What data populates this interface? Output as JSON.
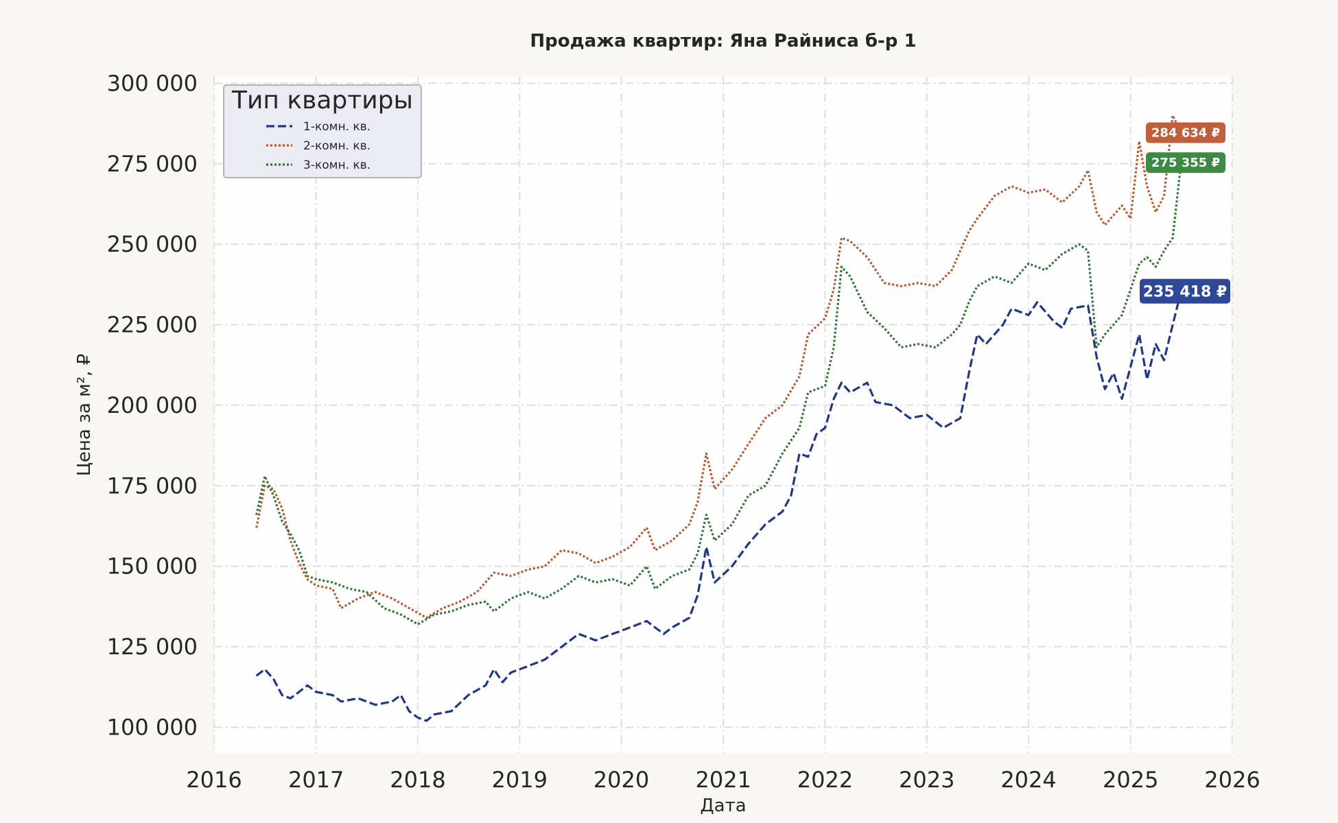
{
  "chart_data": {
    "type": "line",
    "title": "Продажа квартир: Яна Райниса б-р 1",
    "xlabel": "Дата",
    "ylabel": "Цена за м², ₽",
    "x_ticks": [
      "2016",
      "2017",
      "2018",
      "2019",
      "2020",
      "2021",
      "2022",
      "2023",
      "2024",
      "2025",
      "2026"
    ],
    "y_ticks": [
      "100 000",
      "125 000",
      "150 000",
      "175 000",
      "200 000",
      "225 000",
      "250 000",
      "275 000",
      "300 000"
    ],
    "xlim": [
      "2016-01-01",
      "2026-01-01"
    ],
    "ylim": [
      92000,
      302000
    ],
    "grid": true,
    "legend": {
      "title": "Тип квартиры",
      "placement": "top-left"
    },
    "series": [
      {
        "name": "1-комн. кв.",
        "color": "#1f3788",
        "label_color": "#2f4797",
        "style": "dashed",
        "end_label": "235 418 ₽",
        "points": [
          [
            "2016-06-01",
            116000
          ],
          [
            "2016-07-01",
            118000
          ],
          [
            "2016-08-01",
            115000
          ],
          [
            "2016-09-01",
            110000
          ],
          [
            "2016-10-01",
            109000
          ],
          [
            "2016-11-01",
            111000
          ],
          [
            "2016-12-01",
            113000
          ],
          [
            "2017-01-01",
            111000
          ],
          [
            "2017-03-01",
            110000
          ],
          [
            "2017-04-01",
            108000
          ],
          [
            "2017-06-01",
            109000
          ],
          [
            "2017-08-01",
            107000
          ],
          [
            "2017-10-01",
            108000
          ],
          [
            "2017-11-01",
            110000
          ],
          [
            "2017-12-01",
            105000
          ],
          [
            "2018-01-01",
            103000
          ],
          [
            "2018-02-01",
            102000
          ],
          [
            "2018-03-01",
            104000
          ],
          [
            "2018-05-01",
            105000
          ],
          [
            "2018-07-01",
            110000
          ],
          [
            "2018-09-01",
            113000
          ],
          [
            "2018-10-01",
            118000
          ],
          [
            "2018-11-01",
            114000
          ],
          [
            "2018-12-01",
            117000
          ],
          [
            "2019-02-01",
            119000
          ],
          [
            "2019-04-01",
            121000
          ],
          [
            "2019-06-01",
            125000
          ],
          [
            "2019-08-01",
            129000
          ],
          [
            "2019-10-01",
            127000
          ],
          [
            "2019-12-01",
            129000
          ],
          [
            "2020-02-01",
            131000
          ],
          [
            "2020-04-01",
            133000
          ],
          [
            "2020-05-01",
            131000
          ],
          [
            "2020-06-01",
            129000
          ],
          [
            "2020-07-01",
            131000
          ],
          [
            "2020-09-01",
            134000
          ],
          [
            "2020-10-01",
            141000
          ],
          [
            "2020-11-01",
            156000
          ],
          [
            "2020-12-01",
            145000
          ],
          [
            "2021-02-01",
            150000
          ],
          [
            "2021-04-01",
            157000
          ],
          [
            "2021-06-01",
            163000
          ],
          [
            "2021-08-01",
            167000
          ],
          [
            "2021-09-01",
            172000
          ],
          [
            "2021-10-01",
            185000
          ],
          [
            "2021-11-01",
            184000
          ],
          [
            "2021-12-01",
            191000
          ],
          [
            "2022-01-01",
            193000
          ],
          [
            "2022-02-01",
            202000
          ],
          [
            "2022-03-01",
            207000
          ],
          [
            "2022-04-01",
            204000
          ],
          [
            "2022-06-01",
            207000
          ],
          [
            "2022-07-01",
            201000
          ],
          [
            "2022-09-01",
            200000
          ],
          [
            "2022-11-01",
            196000
          ],
          [
            "2023-01-01",
            197000
          ],
          [
            "2023-03-01",
            193000
          ],
          [
            "2023-05-01",
            196000
          ],
          [
            "2023-06-01",
            210000
          ],
          [
            "2023-07-01",
            222000
          ],
          [
            "2023-08-01",
            219000
          ],
          [
            "2023-10-01",
            225000
          ],
          [
            "2023-11-01",
            230000
          ],
          [
            "2024-01-01",
            228000
          ],
          [
            "2024-02-01",
            232000
          ],
          [
            "2024-04-01",
            226000
          ],
          [
            "2024-05-01",
            224000
          ],
          [
            "2024-06-01",
            230000
          ],
          [
            "2024-08-01",
            231000
          ],
          [
            "2024-09-01",
            215000
          ],
          [
            "2024-10-01",
            205000
          ],
          [
            "2024-11-01",
            210000
          ],
          [
            "2024-12-01",
            202000
          ],
          [
            "2025-01-01",
            212000
          ],
          [
            "2025-02-01",
            222000
          ],
          [
            "2025-03-01",
            208000
          ],
          [
            "2025-04-01",
            219000
          ],
          [
            "2025-05-01",
            214000
          ],
          [
            "2025-06-01",
            225000
          ],
          [
            "2025-07-01",
            235418
          ]
        ]
      },
      {
        "name": "2-комн. кв.",
        "color": "#b5562b",
        "label_color": "#c0603a",
        "style": "dotted",
        "end_label": "284 634 ₽",
        "points": [
          [
            "2016-06-01",
            162000
          ],
          [
            "2016-07-01",
            175000
          ],
          [
            "2016-08-01",
            174000
          ],
          [
            "2016-09-01",
            168000
          ],
          [
            "2016-10-01",
            158000
          ],
          [
            "2016-11-01",
            151000
          ],
          [
            "2016-12-01",
            146000
          ],
          [
            "2017-01-01",
            144000
          ],
          [
            "2017-03-01",
            143000
          ],
          [
            "2017-04-01",
            137000
          ],
          [
            "2017-06-01",
            140000
          ],
          [
            "2017-08-01",
            142000
          ],
          [
            "2017-10-01",
            140000
          ],
          [
            "2017-12-01",
            137000
          ],
          [
            "2018-02-01",
            134000
          ],
          [
            "2018-04-01",
            137000
          ],
          [
            "2018-06-01",
            139000
          ],
          [
            "2018-08-01",
            142000
          ],
          [
            "2018-10-01",
            148000
          ],
          [
            "2018-12-01",
            147000
          ],
          [
            "2019-02-01",
            149000
          ],
          [
            "2019-04-01",
            150000
          ],
          [
            "2019-06-01",
            155000
          ],
          [
            "2019-08-01",
            154000
          ],
          [
            "2019-10-01",
            151000
          ],
          [
            "2019-12-01",
            153000
          ],
          [
            "2020-02-01",
            156000
          ],
          [
            "2020-04-01",
            162000
          ],
          [
            "2020-05-01",
            155000
          ],
          [
            "2020-07-01",
            158000
          ],
          [
            "2020-09-01",
            163000
          ],
          [
            "2020-10-01",
            170000
          ],
          [
            "2020-11-01",
            185000
          ],
          [
            "2020-12-01",
            174000
          ],
          [
            "2021-02-01",
            180000
          ],
          [
            "2021-04-01",
            188000
          ],
          [
            "2021-06-01",
            196000
          ],
          [
            "2021-08-01",
            200000
          ],
          [
            "2021-10-01",
            209000
          ],
          [
            "2021-11-01",
            222000
          ],
          [
            "2022-01-01",
            227000
          ],
          [
            "2022-02-01",
            236000
          ],
          [
            "2022-03-01",
            252000
          ],
          [
            "2022-04-01",
            251000
          ],
          [
            "2022-06-01",
            246000
          ],
          [
            "2022-08-01",
            238000
          ],
          [
            "2022-10-01",
            237000
          ],
          [
            "2022-12-01",
            238000
          ],
          [
            "2023-02-01",
            237000
          ],
          [
            "2023-04-01",
            242000
          ],
          [
            "2023-05-01",
            248000
          ],
          [
            "2023-06-01",
            254000
          ],
          [
            "2023-07-01",
            258000
          ],
          [
            "2023-09-01",
            265000
          ],
          [
            "2023-11-01",
            268000
          ],
          [
            "2024-01-01",
            266000
          ],
          [
            "2024-03-01",
            267000
          ],
          [
            "2024-05-01",
            263000
          ],
          [
            "2024-07-01",
            268000
          ],
          [
            "2024-08-01",
            273000
          ],
          [
            "2024-09-01",
            260000
          ],
          [
            "2024-10-01",
            256000
          ],
          [
            "2024-12-01",
            262000
          ],
          [
            "2025-01-01",
            258000
          ],
          [
            "2025-02-01",
            282000
          ],
          [
            "2025-03-01",
            268000
          ],
          [
            "2025-04-01",
            260000
          ],
          [
            "2025-05-01",
            265000
          ],
          [
            "2025-06-01",
            290000
          ],
          [
            "2025-07-01",
            284634
          ]
        ]
      },
      {
        "name": "3-комн. кв.",
        "color": "#2e7432",
        "label_color": "#3d8a43",
        "style": "dotted",
        "end_label": "275 355 ₽",
        "points": [
          [
            "2016-06-01",
            166000
          ],
          [
            "2016-07-01",
            178000
          ],
          [
            "2016-08-01",
            172000
          ],
          [
            "2016-09-01",
            164000
          ],
          [
            "2016-10-01",
            160000
          ],
          [
            "2016-11-01",
            155000
          ],
          [
            "2016-12-01",
            147000
          ],
          [
            "2017-01-01",
            146000
          ],
          [
            "2017-03-01",
            145000
          ],
          [
            "2017-05-01",
            143000
          ],
          [
            "2017-07-01",
            142000
          ],
          [
            "2017-09-01",
            137000
          ],
          [
            "2017-11-01",
            135000
          ],
          [
            "2018-01-01",
            132000
          ],
          [
            "2018-03-01",
            135000
          ],
          [
            "2018-05-01",
            136000
          ],
          [
            "2018-07-01",
            138000
          ],
          [
            "2018-09-01",
            139000
          ],
          [
            "2018-10-01",
            136000
          ],
          [
            "2018-12-01",
            140000
          ],
          [
            "2019-02-01",
            142000
          ],
          [
            "2019-04-01",
            140000
          ],
          [
            "2019-06-01",
            143000
          ],
          [
            "2019-08-01",
            147000
          ],
          [
            "2019-10-01",
            145000
          ],
          [
            "2019-12-01",
            146000
          ],
          [
            "2020-02-01",
            144000
          ],
          [
            "2020-04-01",
            150000
          ],
          [
            "2020-05-01",
            143000
          ],
          [
            "2020-07-01",
            147000
          ],
          [
            "2020-09-01",
            149000
          ],
          [
            "2020-10-01",
            154000
          ],
          [
            "2020-11-01",
            166000
          ],
          [
            "2020-12-01",
            158000
          ],
          [
            "2021-02-01",
            163000
          ],
          [
            "2021-04-01",
            172000
          ],
          [
            "2021-06-01",
            175000
          ],
          [
            "2021-08-01",
            185000
          ],
          [
            "2021-10-01",
            193000
          ],
          [
            "2021-11-01",
            204000
          ],
          [
            "2022-01-01",
            206000
          ],
          [
            "2022-02-01",
            218000
          ],
          [
            "2022-03-01",
            243000
          ],
          [
            "2022-04-01",
            240000
          ],
          [
            "2022-06-01",
            229000
          ],
          [
            "2022-08-01",
            224000
          ],
          [
            "2022-10-01",
            218000
          ],
          [
            "2022-12-01",
            219000
          ],
          [
            "2023-02-01",
            218000
          ],
          [
            "2023-04-01",
            222000
          ],
          [
            "2023-05-01",
            225000
          ],
          [
            "2023-06-01",
            232000
          ],
          [
            "2023-07-01",
            237000
          ],
          [
            "2023-09-01",
            240000
          ],
          [
            "2023-11-01",
            238000
          ],
          [
            "2024-01-01",
            244000
          ],
          [
            "2024-03-01",
            242000
          ],
          [
            "2024-05-01",
            247000
          ],
          [
            "2024-07-01",
            250000
          ],
          [
            "2024-08-01",
            248000
          ],
          [
            "2024-09-01",
            218000
          ],
          [
            "2024-10-01",
            222000
          ],
          [
            "2024-12-01",
            228000
          ],
          [
            "2025-01-01",
            236000
          ],
          [
            "2025-02-01",
            244000
          ],
          [
            "2025-03-01",
            246000
          ],
          [
            "2025-04-01",
            243000
          ],
          [
            "2025-05-01",
            248000
          ],
          [
            "2025-06-01",
            252000
          ],
          [
            "2025-07-01",
            275355
          ]
        ]
      }
    ]
  }
}
